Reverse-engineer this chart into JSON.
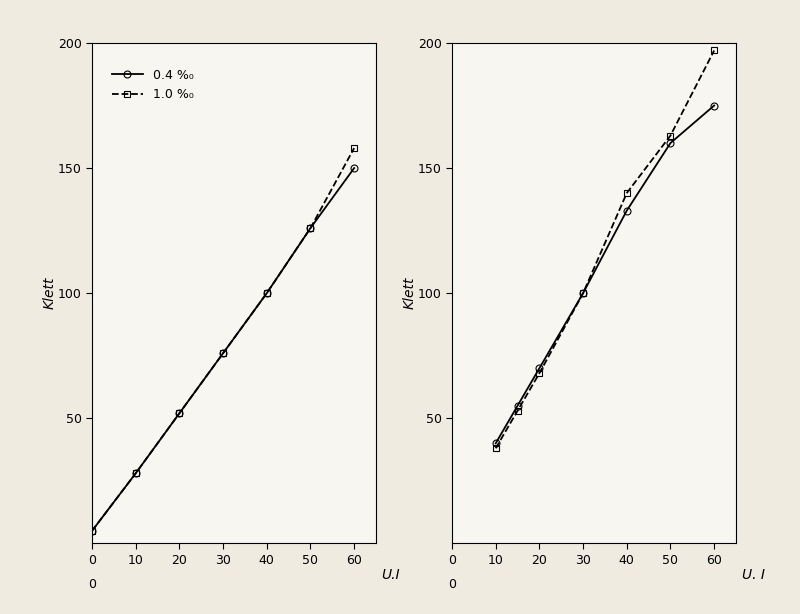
{
  "background_color": "#f0ebe0",
  "axes_color": "#f8f6f0",
  "left_chart": {
    "xlabel": "U.I",
    "ylabel": "Klett",
    "xlim": [
      0,
      65
    ],
    "ylim": [
      0,
      200
    ],
    "xticks": [
      0,
      10,
      20,
      30,
      40,
      50,
      60
    ],
    "yticks": [
      50,
      100,
      150,
      200
    ],
    "series": [
      {
        "label": "0.4 %₀",
        "x": [
          0,
          10,
          20,
          30,
          40,
          50,
          60
        ],
        "y": [
          5,
          28,
          52,
          76,
          100,
          126,
          150
        ],
        "linestyle": "-",
        "marker": "o",
        "color": "black",
        "linewidth": 1.3,
        "markersize": 5,
        "fillstyle": "none"
      },
      {
        "label": "1.0 %₀",
        "x": [
          0,
          10,
          20,
          30,
          40,
          50,
          60
        ],
        "y": [
          5,
          28,
          52,
          76,
          100,
          126,
          158
        ],
        "linestyle": "--",
        "marker": "s",
        "color": "black",
        "linewidth": 1.3,
        "markersize": 5,
        "fillstyle": "none"
      }
    ]
  },
  "right_chart": {
    "xlabel": "U. I",
    "ylabel": "Klett",
    "xlim": [
      0,
      65
    ],
    "ylim": [
      0,
      200
    ],
    "xticks": [
      0,
      10,
      20,
      30,
      40,
      50,
      60
    ],
    "yticks": [
      50,
      100,
      150,
      200
    ],
    "series": [
      {
        "label": "0.4 %₀",
        "x": [
          10,
          15,
          20,
          30,
          40,
          50,
          60
        ],
        "y": [
          40,
          55,
          70,
          100,
          133,
          160,
          175
        ],
        "linestyle": "-",
        "marker": "o",
        "color": "black",
        "linewidth": 1.3,
        "markersize": 5,
        "fillstyle": "none"
      },
      {
        "label": "1.0 %₀",
        "x": [
          10,
          15,
          20,
          30,
          40,
          50,
          60
        ],
        "y": [
          38,
          53,
          68,
          100,
          140,
          163,
          197
        ],
        "linestyle": "--",
        "marker": "s",
        "color": "black",
        "linewidth": 1.3,
        "markersize": 5,
        "fillstyle": "none"
      }
    ]
  }
}
